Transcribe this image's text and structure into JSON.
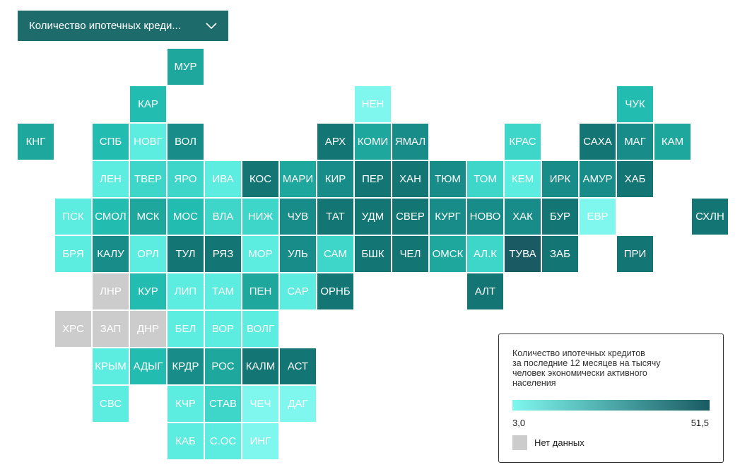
{
  "dropdown": {
    "label": "Количество ипотечных креди..."
  },
  "legend": {
    "title_lines": [
      "Количество ипотечных кредитов",
      "за последние 12 месяцев на тысячу",
      "человек экономически активного",
      "населения"
    ],
    "min": "3,0",
    "max": "51,5",
    "no_data": "Нет данных"
  },
  "colors": {
    "nodata": "#cccccc",
    "scale": [
      "#7ff7ee",
      "#5cece0",
      "#3dd6c9",
      "#23bcb0",
      "#1da79d",
      "#188c88",
      "#147575",
      "#1a5a63"
    ]
  },
  "tiles": [
    {
      "label": "МУР",
      "col": 4,
      "row": 0,
      "lvl": 4
    },
    {
      "label": "КАР",
      "col": 3,
      "row": 1,
      "lvl": 3
    },
    {
      "label": "НЕН",
      "col": 9,
      "row": 1,
      "lvl": 0
    },
    {
      "label": "ЧУК",
      "col": 16,
      "row": 1,
      "lvl": 3
    },
    {
      "label": "КНГ",
      "col": 0,
      "row": 2,
      "lvl": 4
    },
    {
      "label": "СПБ",
      "col": 2,
      "row": 2,
      "lvl": 3
    },
    {
      "label": "НОВГ",
      "col": 3,
      "row": 2,
      "lvl": 1
    },
    {
      "label": "ВОЛ",
      "col": 4,
      "row": 2,
      "lvl": 5
    },
    {
      "label": "АРХ",
      "col": 8,
      "row": 2,
      "lvl": 6
    },
    {
      "label": "КОМИ",
      "col": 9,
      "row": 2,
      "lvl": 4
    },
    {
      "label": "ЯМАЛ",
      "col": 10,
      "row": 2,
      "lvl": 5
    },
    {
      "label": "КРАС",
      "col": 13,
      "row": 2,
      "lvl": 2
    },
    {
      "label": "САХА",
      "col": 15,
      "row": 2,
      "lvl": 6
    },
    {
      "label": "МАГ",
      "col": 16,
      "row": 2,
      "lvl": 5
    },
    {
      "label": "КАМ",
      "col": 17,
      "row": 2,
      "lvl": 4
    },
    {
      "label": "ЛЕН",
      "col": 2,
      "row": 3,
      "lvl": 1
    },
    {
      "label": "ТВЕР",
      "col": 3,
      "row": 3,
      "lvl": 2
    },
    {
      "label": "ЯРО",
      "col": 4,
      "row": 3,
      "lvl": 2
    },
    {
      "label": "ИВА",
      "col": 5,
      "row": 3,
      "lvl": 1
    },
    {
      "label": "КОС",
      "col": 6,
      "row": 3,
      "lvl": 6
    },
    {
      "label": "МАРИ",
      "col": 7,
      "row": 3,
      "lvl": 4
    },
    {
      "label": "КИР",
      "col": 8,
      "row": 3,
      "lvl": 5
    },
    {
      "label": "ПЕР",
      "col": 9,
      "row": 3,
      "lvl": 6
    },
    {
      "label": "ХАН",
      "col": 10,
      "row": 3,
      "lvl": 6
    },
    {
      "label": "ТЮМ",
      "col": 11,
      "row": 3,
      "lvl": 5
    },
    {
      "label": "ТОМ",
      "col": 12,
      "row": 3,
      "lvl": 2
    },
    {
      "label": "КЕМ",
      "col": 13,
      "row": 3,
      "lvl": 1
    },
    {
      "label": "ИРК",
      "col": 14,
      "row": 3,
      "lvl": 5
    },
    {
      "label": "АМУР",
      "col": 15,
      "row": 3,
      "lvl": 5
    },
    {
      "label": "ХАБ",
      "col": 16,
      "row": 3,
      "lvl": 6
    },
    {
      "label": "ПСК",
      "col": 1,
      "row": 4,
      "lvl": 1
    },
    {
      "label": "СМОЛ",
      "col": 2,
      "row": 4,
      "lvl": 3
    },
    {
      "label": "МСК",
      "col": 3,
      "row": 4,
      "lvl": 4
    },
    {
      "label": "МОС",
      "col": 4,
      "row": 4,
      "lvl": 3
    },
    {
      "label": "ВЛА",
      "col": 5,
      "row": 4,
      "lvl": 2
    },
    {
      "label": "НИЖ",
      "col": 6,
      "row": 4,
      "lvl": 2
    },
    {
      "label": "ЧУВ",
      "col": 7,
      "row": 4,
      "lvl": 5
    },
    {
      "label": "ТАТ",
      "col": 8,
      "row": 4,
      "lvl": 6
    },
    {
      "label": "УДМ",
      "col": 9,
      "row": 4,
      "lvl": 6
    },
    {
      "label": "СВЕР",
      "col": 10,
      "row": 4,
      "lvl": 6
    },
    {
      "label": "КУРГ",
      "col": 11,
      "row": 4,
      "lvl": 5
    },
    {
      "label": "НОВО",
      "col": 12,
      "row": 4,
      "lvl": 5
    },
    {
      "label": "ХАК",
      "col": 13,
      "row": 4,
      "lvl": 5
    },
    {
      "label": "БУР",
      "col": 14,
      "row": 4,
      "lvl": 6
    },
    {
      "label": "ЕВР",
      "col": 15,
      "row": 4,
      "lvl": 0
    },
    {
      "label": "СХЛН",
      "col": 18,
      "row": 4,
      "lvl": 6
    },
    {
      "label": "БРЯ",
      "col": 1,
      "row": 5,
      "lvl": 1
    },
    {
      "label": "КАЛУ",
      "col": 2,
      "row": 5,
      "lvl": 5
    },
    {
      "label": "ОРЛ",
      "col": 3,
      "row": 5,
      "lvl": 1
    },
    {
      "label": "ТУЛ",
      "col": 4,
      "row": 5,
      "lvl": 6
    },
    {
      "label": "РЯЗ",
      "col": 5,
      "row": 5,
      "lvl": 6
    },
    {
      "label": "МОР",
      "col": 6,
      "row": 5,
      "lvl": 1
    },
    {
      "label": "УЛЬ",
      "col": 7,
      "row": 5,
      "lvl": 5
    },
    {
      "label": "САМ",
      "col": 8,
      "row": 5,
      "lvl": 2
    },
    {
      "label": "БШК",
      "col": 9,
      "row": 5,
      "lvl": 6
    },
    {
      "label": "ЧЕЛ",
      "col": 10,
      "row": 5,
      "lvl": 6
    },
    {
      "label": "ОМСК",
      "col": 11,
      "row": 5,
      "lvl": 4
    },
    {
      "label": "АЛ.К",
      "col": 12,
      "row": 5,
      "lvl": 2
    },
    {
      "label": "ТУВА",
      "col": 13,
      "row": 5,
      "lvl": 7
    },
    {
      "label": "ЗАБ",
      "col": 14,
      "row": 5,
      "lvl": 6
    },
    {
      "label": "ПРИ",
      "col": 16,
      "row": 5,
      "lvl": 6
    },
    {
      "label": "ЛНР",
      "col": 2,
      "row": 6,
      "lvl": -1
    },
    {
      "label": "КУР",
      "col": 3,
      "row": 6,
      "lvl": 3
    },
    {
      "label": "ЛИП",
      "col": 4,
      "row": 6,
      "lvl": 1
    },
    {
      "label": "ТАМ",
      "col": 5,
      "row": 6,
      "lvl": 1
    },
    {
      "label": "ПЕН",
      "col": 6,
      "row": 6,
      "lvl": 4
    },
    {
      "label": "САР",
      "col": 7,
      "row": 6,
      "lvl": 1
    },
    {
      "label": "ОРНБ",
      "col": 8,
      "row": 6,
      "lvl": 6
    },
    {
      "label": "АЛТ",
      "col": 12,
      "row": 6,
      "lvl": 6
    },
    {
      "label": "ХРС",
      "col": 1,
      "row": 7,
      "lvl": -1
    },
    {
      "label": "ЗАП",
      "col": 2,
      "row": 7,
      "lvl": -1
    },
    {
      "label": "ДНР",
      "col": 3,
      "row": 7,
      "lvl": -1
    },
    {
      "label": "БЕЛ",
      "col": 4,
      "row": 7,
      "lvl": 1
    },
    {
      "label": "ВОР",
      "col": 5,
      "row": 7,
      "lvl": 1
    },
    {
      "label": "ВОЛГ",
      "col": 6,
      "row": 7,
      "lvl": 1
    },
    {
      "label": "КРЫМ",
      "col": 2,
      "row": 8,
      "lvl": 1
    },
    {
      "label": "АДЫГ",
      "col": 3,
      "row": 8,
      "lvl": 3
    },
    {
      "label": "КРДР",
      "col": 4,
      "row": 8,
      "lvl": 5
    },
    {
      "label": "РОС",
      "col": 5,
      "row": 8,
      "lvl": 4
    },
    {
      "label": "КАЛМ",
      "col": 6,
      "row": 8,
      "lvl": 6
    },
    {
      "label": "АСТ",
      "col": 7,
      "row": 8,
      "lvl": 6
    },
    {
      "label": "СВС",
      "col": 2,
      "row": 9,
      "lvl": 1
    },
    {
      "label": "КЧР",
      "col": 4,
      "row": 9,
      "lvl": 1
    },
    {
      "label": "СТАВ",
      "col": 5,
      "row": 9,
      "lvl": 2
    },
    {
      "label": "ЧЕЧ",
      "col": 6,
      "row": 9,
      "lvl": 0
    },
    {
      "label": "ДАГ",
      "col": 7,
      "row": 9,
      "lvl": 0
    },
    {
      "label": "КАБ",
      "col": 4,
      "row": 10,
      "lvl": 1
    },
    {
      "label": "С.ОС",
      "col": 5,
      "row": 10,
      "lvl": 1
    },
    {
      "label": "ИНГ",
      "col": 6,
      "row": 10,
      "lvl": 0
    }
  ]
}
